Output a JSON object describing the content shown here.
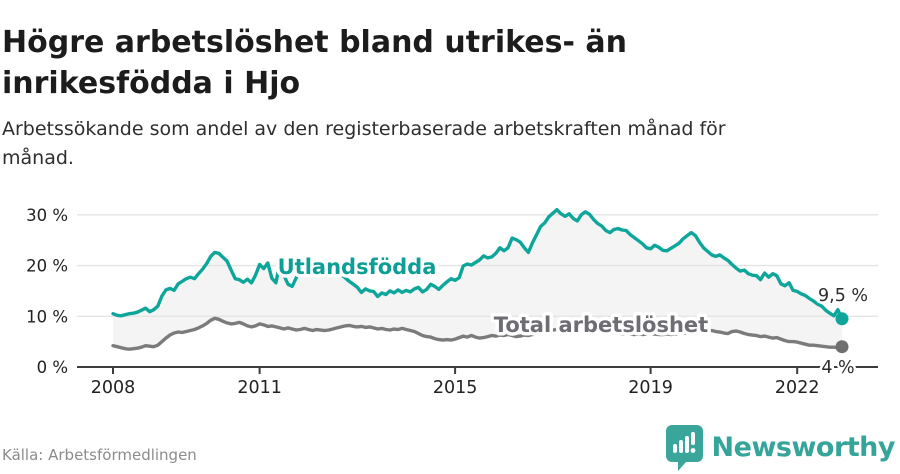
{
  "header": {
    "title": "Högre arbetslöshet bland utrikes- än inrikesfödda i Hjo",
    "subtitle": "Arbetssökande som andel av den registerbaserade arbetskraften månad för månad."
  },
  "footer": {
    "source": "Källa: Arbetsförmedlingen",
    "brand": "Newsworthy",
    "brand_color": "#35a49a"
  },
  "colors": {
    "accent_teal": "#0ea69b",
    "line_gray": "#7b7b7b",
    "label_gray": "#6d6d74",
    "band_fill": "#f4f4f4",
    "grid": "#e3e3e3",
    "axis": "#3c3c3c",
    "tick_text": "#222222",
    "end_label_text": "#2d2d2d"
  },
  "chart_data": {
    "type": "line",
    "unit": "%",
    "x_start_year": 2008,
    "points_per_month": 1,
    "x_tick_labels": [
      "2008",
      "2011",
      "2015",
      "2019",
      "2022"
    ],
    "x_tick_years": [
      2008,
      2011,
      2015,
      2019,
      2022
    ],
    "y_ticks": [
      0,
      10,
      20,
      30
    ],
    "y_tick_labels": [
      "0 %",
      "10 %",
      "20 %",
      "30 %"
    ],
    "ylim": [
      0,
      33
    ],
    "grid": "horizontal",
    "legend_position": "inline-labels",
    "series": [
      {
        "name": "Utlandsfödda",
        "color": "#0ea69b",
        "end_label": "9,5 %",
        "last_value": 9.5,
        "values": [
          10.5,
          10.2,
          10.1,
          10.3,
          10.5,
          10.6,
          10.8,
          11.2,
          11.6,
          10.9,
          11.3,
          12.0,
          14.0,
          15.2,
          15.5,
          15.1,
          16.4,
          16.9,
          17.4,
          17.7,
          17.4,
          18.4,
          19.3,
          20.4,
          21.8,
          22.6,
          22.4,
          21.6,
          20.9,
          19.1,
          17.4,
          17.2,
          16.7,
          17.3,
          16.6,
          18.1,
          20.2,
          19.4,
          20.5,
          17.5,
          16.6,
          20.7,
          18.0,
          16.3,
          15.9,
          17.6,
          19.2,
          20.6,
          21.2,
          20.3,
          20.9,
          19.4,
          18.4,
          20.7,
          20.9,
          19.0,
          18.2,
          17.6,
          16.9,
          16.3,
          15.7,
          14.7,
          15.4,
          15.0,
          14.9,
          13.9,
          14.6,
          14.3,
          15.0,
          14.6,
          15.2,
          14.7,
          15.1,
          14.8,
          15.4,
          15.7,
          14.8,
          15.3,
          16.3,
          15.9,
          15.3,
          16.1,
          16.8,
          17.4,
          17.1,
          17.6,
          19.9,
          20.3,
          20.1,
          20.6,
          21.1,
          21.9,
          21.5,
          21.7,
          22.4,
          23.5,
          22.9,
          23.5,
          25.4,
          25.1,
          24.6,
          23.5,
          22.6,
          24.5,
          26.1,
          27.7,
          28.4,
          29.6,
          30.3,
          31.0,
          30.2,
          29.7,
          30.2,
          29.3,
          28.8,
          30.0,
          30.6,
          30.1,
          29.1,
          28.3,
          27.8,
          26.9,
          26.5,
          27.1,
          27.3,
          27.0,
          26.9,
          26.1,
          25.5,
          24.9,
          24.3,
          23.5,
          23.3,
          24.0,
          23.6,
          23.0,
          22.9,
          23.4,
          23.9,
          24.4,
          25.3,
          25.9,
          26.5,
          25.9,
          24.6,
          23.5,
          22.8,
          22.1,
          21.8,
          22.1,
          21.5,
          21.0,
          20.2,
          19.5,
          18.9,
          19.1,
          18.4,
          18.1,
          18.0,
          17.2,
          18.5,
          17.7,
          18.4,
          18.0,
          16.4,
          16.0,
          16.6,
          15.1,
          14.9,
          14.4,
          14.1,
          13.5,
          13.0,
          12.4,
          12.0,
          11.2,
          10.6,
          10.1,
          11.3,
          9.5
        ]
      },
      {
        "name": "Total arbetslöshet",
        "color": "#7b7b7b",
        "end_label": "4 %",
        "last_value": 4.0,
        "values": [
          4.2,
          4.0,
          3.8,
          3.6,
          3.5,
          3.6,
          3.7,
          3.9,
          4.2,
          4.1,
          4.0,
          4.3,
          5.0,
          5.7,
          6.3,
          6.7,
          6.9,
          6.8,
          7.0,
          7.2,
          7.4,
          7.7,
          8.1,
          8.6,
          9.2,
          9.6,
          9.4,
          9.0,
          8.7,
          8.5,
          8.6,
          8.8,
          8.5,
          8.1,
          7.9,
          8.1,
          8.5,
          8.3,
          8.0,
          8.1,
          7.9,
          7.7,
          7.5,
          7.7,
          7.5,
          7.3,
          7.4,
          7.6,
          7.4,
          7.2,
          7.4,
          7.3,
          7.2,
          7.3,
          7.5,
          7.7,
          7.9,
          8.1,
          8.2,
          8.0,
          7.9,
          8.0,
          7.8,
          7.9,
          7.7,
          7.5,
          7.6,
          7.4,
          7.3,
          7.5,
          7.4,
          7.6,
          7.4,
          7.2,
          7.0,
          6.6,
          6.2,
          6.0,
          5.9,
          5.6,
          5.4,
          5.3,
          5.4,
          5.3,
          5.5,
          5.8,
          6.1,
          5.9,
          6.2,
          5.9,
          5.7,
          5.8,
          6.0,
          6.2,
          6.1,
          6.3,
          6.2,
          6.4,
          6.2,
          6.0,
          6.1,
          6.3,
          6.2,
          6.4,
          6.6,
          6.8,
          7.0,
          7.2,
          7.3,
          7.4,
          7.2,
          7.3,
          7.1,
          7.0,
          7.1,
          7.2,
          7.0,
          6.9,
          7.0,
          7.0,
          6.9,
          6.8,
          6.7,
          6.8,
          6.6,
          6.5,
          6.6,
          6.5,
          6.4,
          6.5,
          6.4,
          6.5,
          6.6,
          6.5,
          6.4,
          6.4,
          6.5,
          6.4,
          6.5,
          6.6,
          6.6,
          6.7,
          6.7,
          6.9,
          7.1,
          7.3,
          7.3,
          7.2,
          7.0,
          6.9,
          6.7,
          6.6,
          7.0,
          7.1,
          6.9,
          6.6,
          6.4,
          6.3,
          6.2,
          6.0,
          6.1,
          5.9,
          5.7,
          5.8,
          5.5,
          5.2,
          5.0,
          5.0,
          4.9,
          4.7,
          4.5,
          4.3,
          4.3,
          4.2,
          4.1,
          4.0,
          3.9,
          3.9,
          3.8,
          4.0
        ]
      }
    ]
  }
}
